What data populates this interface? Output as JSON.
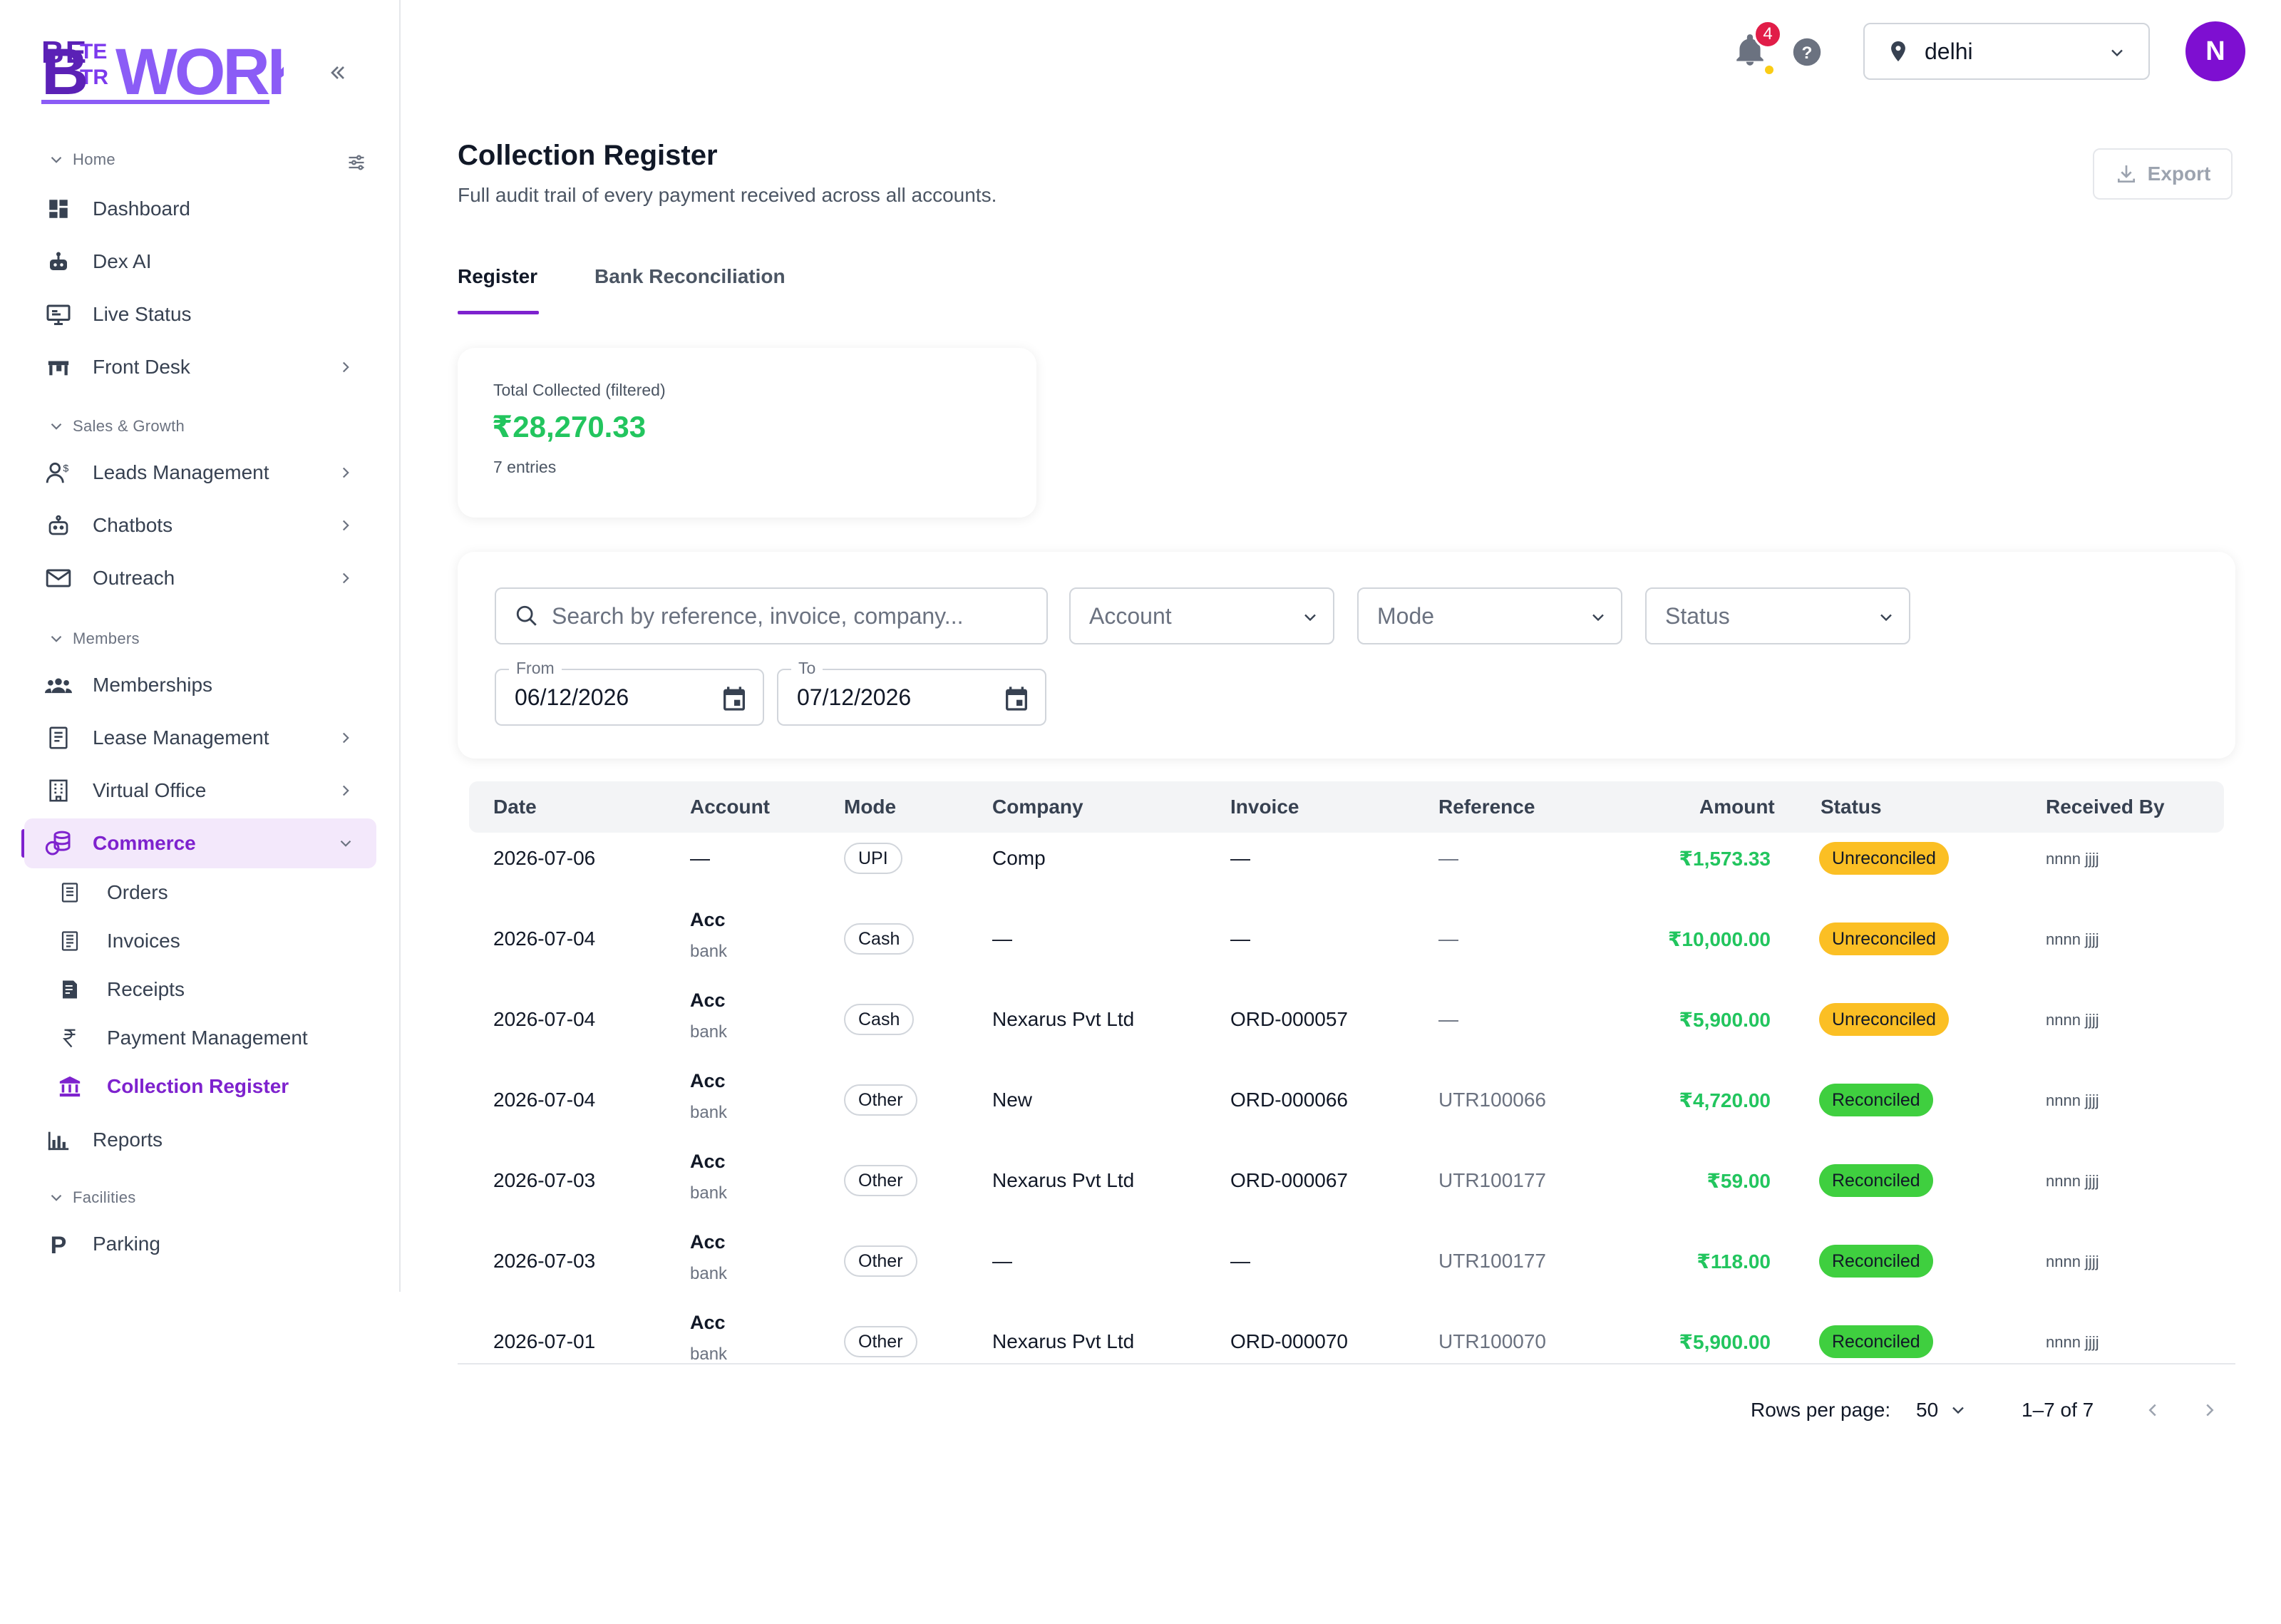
{
  "brand": {
    "logo_text": "BETTERWORK",
    "color": "#5b21b6"
  },
  "colors": {
    "accent": "#7e22ce",
    "amount_green": "#22c55e",
    "unreconciled": "#fbbf24",
    "reconciled": "#3fcf3f"
  },
  "sidebar": {
    "sections": {
      "home": "Home",
      "sales": "Sales & Growth",
      "members": "Members",
      "facilities": "Facilities"
    },
    "items": {
      "dashboard": "Dashboard",
      "dex_ai": "Dex AI",
      "live_status": "Live Status",
      "front_desk": "Front Desk",
      "leads": "Leads Management",
      "chatbots": "Chatbots",
      "outreach": "Outreach",
      "memberships": "Memberships",
      "lease": "Lease Management",
      "virtual_office": "Virtual Office",
      "commerce": "Commerce",
      "reports": "Reports",
      "parking": "Parking"
    },
    "commerce_sub": {
      "orders": "Orders",
      "invoices": "Invoices",
      "receipts": "Receipts",
      "payment": "Payment Management",
      "collection": "Collection Register"
    }
  },
  "topbar": {
    "notifications_count": "4",
    "location": "delhi",
    "avatar_initial": "N"
  },
  "header": {
    "title": "Collection Register",
    "subtitle": "Full audit trail of every payment received across all accounts.",
    "export_label": "Export"
  },
  "tabs": {
    "register": "Register",
    "bank": "Bank Reconciliation"
  },
  "summary": {
    "label": "Total Collected (filtered)",
    "amount": "₹28,270.33",
    "entries": "7 entries"
  },
  "filters": {
    "search_placeholder": "Search by reference, invoice, company...",
    "account": "Account",
    "mode": "Mode",
    "status": "Status",
    "from_label": "From",
    "from_value": "06/12/2026",
    "to_label": "To",
    "to_value": "07/12/2026"
  },
  "table": {
    "headers": {
      "date": "Date",
      "account": "Account",
      "mode": "Mode",
      "company": "Company",
      "invoice": "Invoice",
      "reference": "Reference",
      "amount": "Amount",
      "status": "Status",
      "received_by": "Received By"
    },
    "rows": [
      {
        "date": "2026-07-06",
        "account": "—",
        "account_sub": "",
        "mode": "UPI",
        "company": "Comp",
        "invoice": "—",
        "reference": "—",
        "amount": "₹1,573.33",
        "status": "Unreconciled",
        "received_by": "nnnn jjjj"
      },
      {
        "date": "2026-07-04",
        "account": "Acc",
        "account_sub": "bank",
        "mode": "Cash",
        "company": "—",
        "invoice": "—",
        "reference": "—",
        "amount": "₹10,000.00",
        "status": "Unreconciled",
        "received_by": "nnnn jjjj"
      },
      {
        "date": "2026-07-04",
        "account": "Acc",
        "account_sub": "bank",
        "mode": "Cash",
        "company": "Nexarus Pvt Ltd",
        "invoice": "ORD-000057",
        "reference": "—",
        "amount": "₹5,900.00",
        "status": "Unreconciled",
        "received_by": "nnnn jjjj"
      },
      {
        "date": "2026-07-04",
        "account": "Acc",
        "account_sub": "bank",
        "mode": "Other",
        "company": "New",
        "invoice": "ORD-000066",
        "reference": "UTR100066",
        "amount": "₹4,720.00",
        "status": "Reconciled",
        "received_by": "nnnn jjjj"
      },
      {
        "date": "2026-07-03",
        "account": "Acc",
        "account_sub": "bank",
        "mode": "Other",
        "company": "Nexarus Pvt Ltd",
        "invoice": "ORD-000067",
        "reference": "UTR100177",
        "amount": "₹59.00",
        "status": "Reconciled",
        "received_by": "nnnn jjjj"
      },
      {
        "date": "2026-07-03",
        "account": "Acc",
        "account_sub": "bank",
        "mode": "Other",
        "company": "—",
        "invoice": "—",
        "reference": "UTR100177",
        "amount": "₹118.00",
        "status": "Reconciled",
        "received_by": "nnnn jjjj"
      },
      {
        "date": "2026-07-01",
        "account": "Acc",
        "account_sub": "bank",
        "mode": "Other",
        "company": "Nexarus Pvt Ltd",
        "invoice": "ORD-000070",
        "reference": "UTR100070",
        "amount": "₹5,900.00",
        "status": "Reconciled",
        "received_by": "nnnn jjjj"
      }
    ]
  },
  "pagination": {
    "rows_label": "Rows per page:",
    "rows_value": "50",
    "range": "1–7 of 7"
  }
}
